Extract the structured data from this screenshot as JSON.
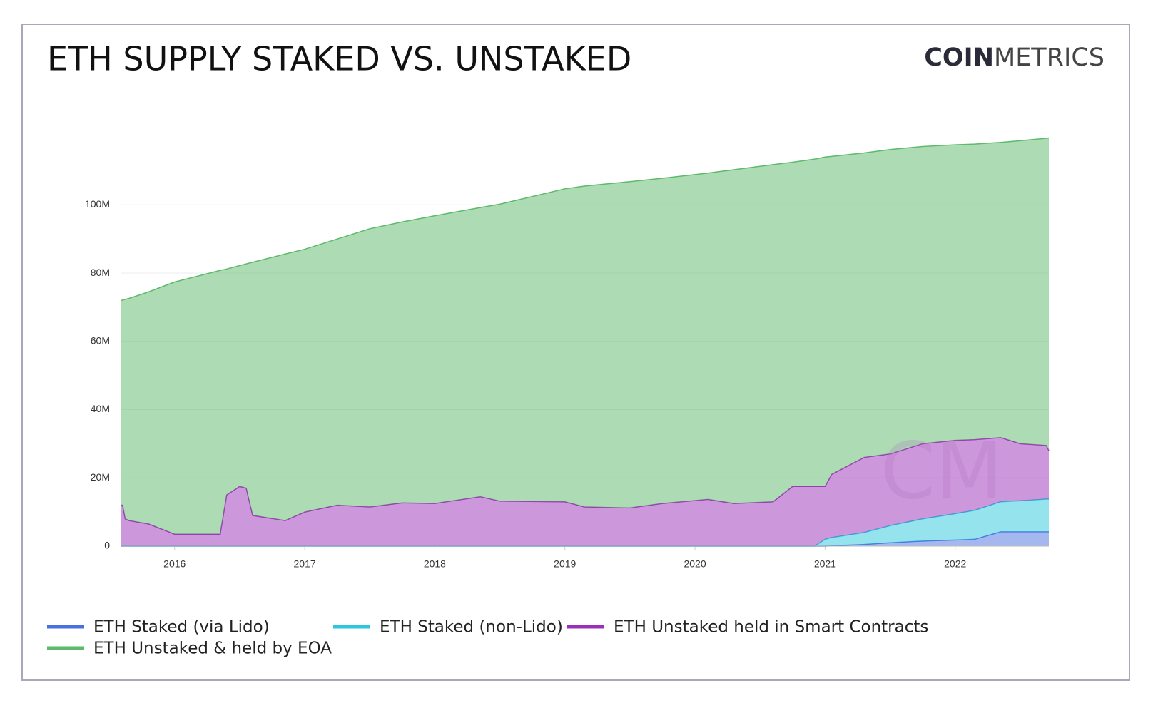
{
  "chart_data": {
    "type": "stacked_area",
    "title": "ETH SUPPLY STAKED VS. UNSTAKED",
    "logo_bold": "COIN",
    "logo_light": "METRICS",
    "watermark": "CM",
    "x": [
      2015.59,
      2015.6,
      2015.62,
      2015.65,
      2015.8,
      2016.0,
      2016.35,
      2016.4,
      2016.5,
      2016.55,
      2016.6,
      2016.85,
      2017.0,
      2017.25,
      2017.5,
      2017.75,
      2018.0,
      2018.35,
      2018.5,
      2019.0,
      2019.15,
      2019.5,
      2019.75,
      2020.1,
      2020.3,
      2020.6,
      2020.75,
      2020.92,
      2021.0,
      2021.05,
      2021.3,
      2021.5,
      2021.75,
      2022.0,
      2022.15,
      2022.35,
      2022.5,
      2022.7,
      2022.72
    ],
    "xlim": [
      2015.59,
      2022.72
    ],
    "xticks": [
      2016,
      2017,
      2018,
      2019,
      2020,
      2021,
      2022
    ],
    "ylim": [
      0,
      122
    ],
    "yticks": [
      0,
      {
        "value": 20,
        "label": "20M"
      },
      {
        "value": 40,
        "label": "40M"
      },
      {
        "value": 60,
        "label": "60M"
      },
      {
        "value": 80,
        "label": "80M"
      },
      {
        "value": 100,
        "label": "100M"
      }
    ],
    "grid": true,
    "legend": "bottom",
    "series": [
      {
        "name": "ETH Staked (via Lido)",
        "color": "#4a6fe0",
        "values": [
          0,
          0,
          0,
          0,
          0,
          0,
          0,
          0,
          0,
          0,
          0,
          0,
          0,
          0,
          0,
          0,
          0,
          0,
          0,
          0,
          0,
          0,
          0,
          0,
          0,
          0,
          0,
          0,
          0,
          0.1,
          0.5,
          1,
          1.5,
          1.8,
          2,
          4.2,
          4.2,
          4.2,
          4.2
        ]
      },
      {
        "name": "ETH Staked (non-Lido)",
        "color": "#2cc7dc",
        "values": [
          0,
          0,
          0,
          0,
          0,
          0,
          0,
          0,
          0,
          0,
          0,
          0,
          0,
          0,
          0,
          0,
          0,
          0,
          0,
          0,
          0,
          0,
          0,
          0,
          0,
          0,
          0,
          0,
          2,
          2.4,
          3.5,
          5,
          6.5,
          7.7,
          8.5,
          8.8,
          9.1,
          9.6,
          9.6
        ]
      },
      {
        "name": "ETH Unstaked held in Smart Contracts",
        "color": "#9b30b8",
        "values": [
          12,
          12,
          8,
          7.5,
          6.5,
          3.5,
          3.5,
          15,
          17.5,
          17,
          9,
          7.5,
          10,
          12,
          11.5,
          12.7,
          12.5,
          14.5,
          13.2,
          13,
          11.5,
          11.2,
          12.5,
          13.7,
          12.5,
          13,
          17.5,
          17.5,
          15.5,
          18.5,
          22,
          21,
          22,
          21.5,
          20.7,
          18.8,
          16.7,
          15.7,
          14.2
        ]
      },
      {
        "name": "ETH Unstaked & held by EOA",
        "color": "#5cba6a",
        "values": [
          60,
          60.1,
          64.3,
          65.1,
          68,
          73.9,
          77.3,
          66.2,
          64.7,
          65.7,
          74.2,
          78.1,
          77,
          78,
          81.5,
          82.3,
          84.3,
          84.7,
          87,
          91.7,
          94,
          95.6,
          95.3,
          95.6,
          97.8,
          98.8,
          95,
          95.9,
          96.5,
          93.2,
          89.2,
          89.2,
          87.1,
          86.6,
          86.6,
          86.5,
          88.8,
          90,
          91.6
        ]
      }
    ]
  }
}
